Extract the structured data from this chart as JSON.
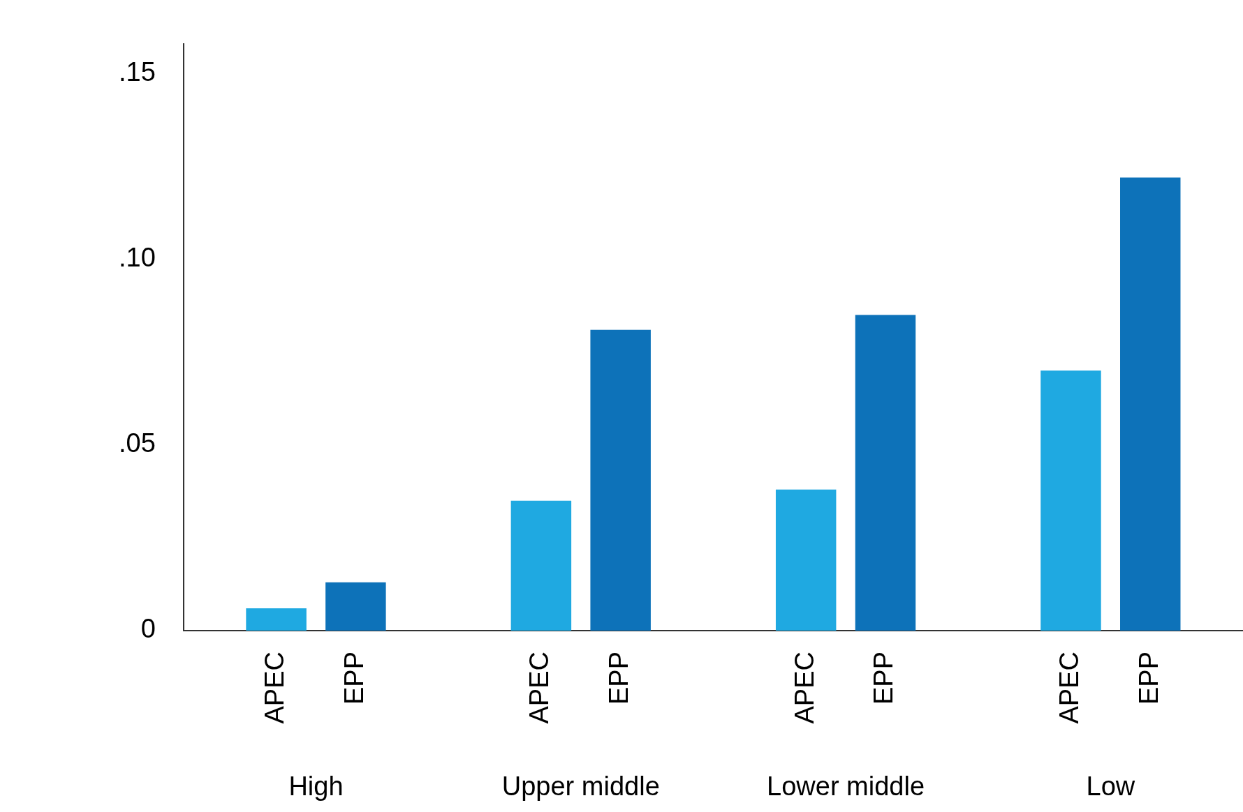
{
  "chart_data": {
    "type": "bar",
    "categories": [
      "High",
      "Upper middle",
      "Lower middle",
      "Low"
    ],
    "series": [
      {
        "name": "APEC",
        "color": "#1fa9e1",
        "values": [
          0.006,
          0.035,
          0.038,
          0.07
        ]
      },
      {
        "name": "EPP",
        "color": "#0d72b9",
        "values": [
          0.013,
          0.081,
          0.085,
          0.122
        ]
      }
    ],
    "ylim": [
      0,
      0.158
    ],
    "yticks": [
      0,
      {
        "value": 0.05,
        "label": ".05"
      },
      {
        "value": 0.1,
        "label": ".10"
      },
      {
        "value": 0.15,
        "label": ".15"
      }
    ],
    "grid": false,
    "legend": false
  }
}
